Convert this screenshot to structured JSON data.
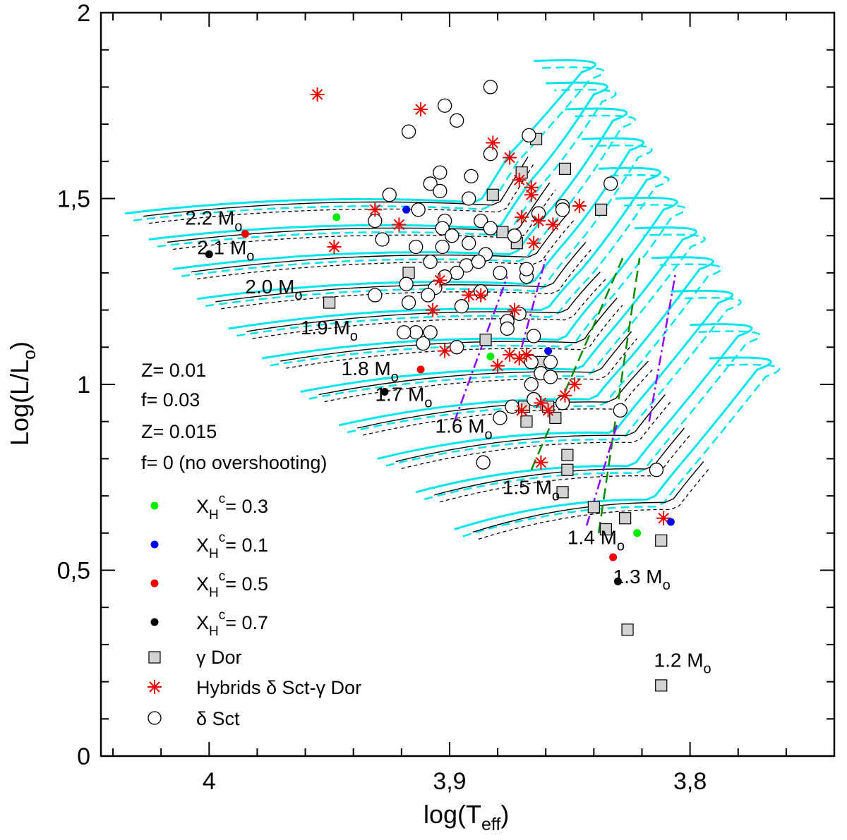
{
  "chart_data": {
    "type": "scatter",
    "title": "",
    "xlabel": "log(T",
    "xlabel_sub": "eff",
    "xlabel_close": ")",
    "ylabel": "Log(L/L",
    "ylabel_sub": "o",
    "ylabel_close": ")",
    "xlim": [
      4.045,
      3.74
    ],
    "ylim": [
      0,
      2
    ],
    "x_ticks": [
      {
        "v": 4.0,
        "label": "4"
      },
      {
        "v": 3.9,
        "label": "3,9"
      },
      {
        "v": 3.8,
        "label": "3,8"
      }
    ],
    "y_ticks": [
      {
        "v": 0,
        "label": "0"
      },
      {
        "v": 0.5,
        "label": "0,5"
      },
      {
        "v": 1,
        "label": "1"
      },
      {
        "v": 1.5,
        "label": "1,5"
      },
      {
        "v": 2,
        "label": "2"
      }
    ],
    "model_text": [
      {
        "text": "Z= 0.01",
        "color": "#00e5ee"
      },
      {
        "text": "f= 0.03",
        "color": "#00e5ee"
      },
      {
        "text": "Z= 0.015",
        "color": "#000000"
      },
      {
        "text": "f= 0 (no overshooting)",
        "color": "#000000"
      }
    ],
    "mass_labels": [
      {
        "mass": "2.2 M",
        "sub": "o",
        "x": 4.01,
        "y": 1.43
      },
      {
        "mass": "2.1 M",
        "sub": "o",
        "x": 4.005,
        "y": 1.35
      },
      {
        "mass": "2.0 M",
        "sub": "o",
        "x": 3.985,
        "y": 1.245
      },
      {
        "mass": "1.9 M",
        "sub": "o",
        "x": 3.962,
        "y": 1.135
      },
      {
        "mass": "1.8 M",
        "sub": "o",
        "x": 3.945,
        "y": 1.025
      },
      {
        "mass": "1.7 M",
        "sub": "o",
        "x": 3.931,
        "y": 0.955
      },
      {
        "mass": "1.6 M",
        "sub": "o",
        "x": 3.906,
        "y": 0.87
      },
      {
        "mass": "1.5 M",
        "sub": "o",
        "x": 3.878,
        "y": 0.705
      },
      {
        "mass": "1.4 M",
        "sub": "o",
        "x": 3.851,
        "y": 0.57
      },
      {
        "mass": "1.3 M",
        "sub": "o",
        "x": 3.832,
        "y": 0.465
      },
      {
        "mass": "1.2 M",
        "sub": "o",
        "x": 3.815,
        "y": 0.24
      }
    ],
    "tracks": [
      {
        "mass": 2.2,
        "zams": [
          4.035,
          1.46
        ],
        "x_h07": [
          4.0,
          1.35
        ],
        "x_h05": [
          3.985,
          1.405
        ],
        "x_h03": [
          3.947,
          1.45
        ],
        "x_h01": [
          3.918,
          1.47
        ],
        "tams_hot": [
          3.89,
          1.49
        ],
        "tams_cool": [
          3.875,
          1.62
        ],
        "end": [
          3.845,
          1.84
        ]
      },
      {
        "mass": 2.1,
        "zams": [
          4.025,
          1.39
        ],
        "tams_hot": [
          3.882,
          1.42
        ],
        "tams_cool": [
          3.866,
          1.55
        ],
        "end": [
          3.84,
          1.78
        ]
      },
      {
        "mass": 2.0,
        "zams": [
          4.015,
          1.31
        ],
        "tams_hot": [
          3.875,
          1.35
        ],
        "tams_cool": [
          3.858,
          1.47
        ],
        "end": [
          3.832,
          1.71
        ]
      },
      {
        "mass": 1.9,
        "zams": [
          4.005,
          1.23
        ],
        "tams_hot": [
          3.868,
          1.27
        ],
        "tams_cool": [
          3.851,
          1.39
        ],
        "end": [
          3.825,
          1.63
        ]
      },
      {
        "mass": 1.8,
        "zams": [
          3.992,
          1.15
        ],
        "tams_hot": [
          3.862,
          1.2
        ],
        "tams_cool": [
          3.845,
          1.31
        ],
        "end": [
          3.818,
          1.55
        ]
      },
      {
        "mass": 1.7,
        "zams": [
          3.978,
          1.07
        ],
        "x_h07": [
          3.927,
          0.98
        ],
        "x_h05": [
          3.912,
          1.04
        ],
        "x_h03": [
          3.883,
          1.075
        ],
        "x_h01": [
          3.859,
          1.09
        ],
        "tams_hot": [
          3.855,
          1.12
        ],
        "tams_cool": [
          3.838,
          1.24
        ],
        "end": [
          3.811,
          1.47
        ]
      },
      {
        "mass": 1.6,
        "zams": [
          3.962,
          0.98
        ],
        "tams_hot": [
          3.848,
          1.04
        ],
        "tams_cool": [
          3.832,
          1.15
        ],
        "end": [
          3.803,
          1.39
        ]
      },
      {
        "mass": 1.5,
        "zams": [
          3.946,
          0.89
        ],
        "tams_hot": [
          3.842,
          0.96
        ],
        "tams_cool": [
          3.825,
          1.07
        ],
        "end": [
          3.796,
          1.31
        ]
      },
      {
        "mass": 1.4,
        "zams": [
          3.93,
          0.8
        ],
        "tams_hot": [
          3.834,
          0.87
        ],
        "tams_cool": [
          3.818,
          0.98
        ],
        "end": [
          3.788,
          1.22
        ]
      },
      {
        "mass": 1.3,
        "zams": [
          3.914,
          0.71
        ],
        "tams_hot": [
          3.826,
          0.78
        ],
        "tams_cool": [
          3.81,
          0.89
        ],
        "end": [
          3.78,
          1.13
        ]
      },
      {
        "mass": 1.2,
        "zams": [
          3.898,
          0.61
        ],
        "x_h07": [
          3.83,
          0.47
        ],
        "x_h05": [
          3.832,
          0.535
        ],
        "x_h03": [
          3.822,
          0.6
        ],
        "x_h01": [
          3.808,
          0.63
        ],
        "tams_hot": [
          3.818,
          0.69
        ],
        "tams_cool": [
          3.802,
          0.8
        ],
        "end": [
          3.772,
          1.04
        ]
      }
    ],
    "instability_strip": {
      "green": [
        {
          "from": [
            3.866,
            0.77
          ],
          "to": [
            3.828,
            1.34
          ]
        },
        {
          "from": [
            3.838,
            0.6
          ],
          "to": [
            3.821,
            1.34
          ]
        }
      ],
      "purple": [
        {
          "from": [
            3.898,
            0.9
          ],
          "to": [
            3.876,
            1.29
          ]
        },
        {
          "from": [
            3.87,
            1.1
          ],
          "to": [
            3.86,
            1.34
          ]
        },
        {
          "from": [
            3.843,
            0.62
          ],
          "to": [
            3.83,
            0.9
          ]
        },
        {
          "from": [
            3.817,
            0.9
          ],
          "to": [
            3.806,
            1.3
          ]
        }
      ]
    },
    "stars_delta_sct": [
      [
        3.917,
        1.68
      ],
      [
        3.902,
        1.75
      ],
      [
        3.897,
        1.71
      ],
      [
        3.883,
        1.8
      ],
      [
        3.867,
        1.67
      ],
      [
        3.883,
        1.62
      ],
      [
        3.904,
        1.57
      ],
      [
        3.891,
        1.56
      ],
      [
        3.908,
        1.54
      ],
      [
        3.904,
        1.52
      ],
      [
        3.892,
        1.5
      ],
      [
        3.925,
        1.51
      ],
      [
        3.853,
        1.48
      ],
      [
        3.863,
        1.46
      ],
      [
        3.853,
        1.47
      ],
      [
        3.833,
        1.54
      ],
      [
        3.913,
        1.47
      ],
      [
        3.931,
        1.44
      ],
      [
        3.902,
        1.44
      ],
      [
        3.887,
        1.44
      ],
      [
        3.903,
        1.42
      ],
      [
        3.883,
        1.42
      ],
      [
        3.899,
        1.4
      ],
      [
        3.928,
        1.39
      ],
      [
        3.914,
        1.37
      ],
      [
        3.892,
        1.38
      ],
      [
        3.873,
        1.4
      ],
      [
        3.903,
        1.37
      ],
      [
        3.893,
        1.32
      ],
      [
        3.885,
        1.35
      ],
      [
        3.908,
        1.33
      ],
      [
        3.897,
        1.3
      ],
      [
        3.888,
        1.33
      ],
      [
        3.879,
        1.3
      ],
      [
        3.868,
        1.29
      ],
      [
        3.868,
        1.31
      ],
      [
        3.902,
        1.29
      ],
      [
        3.906,
        1.26
      ],
      [
        3.918,
        1.27
      ],
      [
        3.909,
        1.24
      ],
      [
        3.931,
        1.24
      ],
      [
        3.917,
        1.22
      ],
      [
        3.895,
        1.21
      ],
      [
        3.887,
        1.25
      ],
      [
        3.876,
        1.17
      ],
      [
        3.871,
        1.19
      ],
      [
        3.865,
        1.13
      ],
      [
        3.876,
        1.15
      ],
      [
        3.911,
        1.11
      ],
      [
        3.908,
        1.14
      ],
      [
        3.914,
        1.14
      ],
      [
        3.919,
        1.14
      ],
      [
        3.897,
        1.1
      ],
      [
        3.866,
        1.06
      ],
      [
        3.862,
        1.03
      ],
      [
        3.853,
        0.95
      ],
      [
        3.865,
        0.96
      ],
      [
        3.874,
        0.94
      ],
      [
        3.879,
        0.91
      ],
      [
        3.886,
        0.79
      ],
      [
        3.814,
        0.77
      ],
      [
        3.829,
        0.93
      ],
      [
        3.866,
        1.0
      ],
      [
        3.858,
        1.02
      ],
      [
        3.858,
        1.06
      ]
    ],
    "stars_gamma_dor": [
      [
        3.864,
        1.66
      ],
      [
        3.87,
        1.57
      ],
      [
        3.852,
        1.58
      ],
      [
        3.882,
        1.51
      ],
      [
        3.837,
        1.47
      ],
      [
        3.878,
        1.41
      ],
      [
        3.872,
        1.38
      ],
      [
        3.917,
        1.3
      ],
      [
        3.95,
        1.22
      ],
      [
        3.885,
        1.12
      ],
      [
        3.862,
        1.06
      ],
      [
        3.869,
        0.94
      ],
      [
        3.859,
        0.94
      ],
      [
        3.856,
        0.91
      ],
      [
        3.868,
        0.9
      ],
      [
        3.851,
        0.81
      ],
      [
        3.851,
        0.77
      ],
      [
        3.853,
        0.71
      ],
      [
        3.84,
        0.67
      ],
      [
        3.835,
        0.61
      ],
      [
        3.827,
        0.64
      ],
      [
        3.812,
        0.58
      ],
      [
        3.826,
        0.34
      ],
      [
        3.812,
        0.19
      ]
    ],
    "stars_hybrid": [
      [
        3.955,
        1.78
      ],
      [
        3.912,
        1.74
      ],
      [
        3.882,
        1.65
      ],
      [
        3.875,
        1.61
      ],
      [
        3.871,
        1.55
      ],
      [
        3.866,
        1.53
      ],
      [
        3.866,
        1.51
      ],
      [
        3.846,
        1.48
      ],
      [
        3.857,
        1.43
      ],
      [
        3.863,
        1.44
      ],
      [
        3.865,
        1.38
      ],
      [
        3.87,
        1.45
      ],
      [
        3.931,
        1.47
      ],
      [
        3.921,
        1.43
      ],
      [
        3.948,
        1.37
      ],
      [
        3.904,
        1.28
      ],
      [
        3.892,
        1.24
      ],
      [
        3.887,
        1.24
      ],
      [
        3.873,
        1.2
      ],
      [
        3.907,
        1.2
      ],
      [
        3.902,
        1.09
      ],
      [
        3.871,
        1.07
      ],
      [
        3.875,
        1.08
      ],
      [
        3.868,
        1.08
      ],
      [
        3.88,
        1.05
      ],
      [
        3.87,
        0.93
      ],
      [
        3.859,
        0.93
      ],
      [
        3.862,
        0.95
      ],
      [
        3.852,
        0.97
      ],
      [
        3.848,
        1.0
      ],
      [
        3.862,
        0.79
      ],
      [
        3.811,
        0.64
      ]
    ],
    "series": [
      {
        "name": "X_H^c= 0.3",
        "label_main": "X",
        "label_sub": "H",
        "label_sup": "c",
        "label_tail": "= 0.3",
        "marker": "dot",
        "color": "#00ee00"
      },
      {
        "name": "X_H^c= 0.1",
        "label_main": "X",
        "label_sub": "H",
        "label_sup": "c",
        "label_tail": "= 0.1",
        "marker": "dot",
        "color": "#0000ee"
      },
      {
        "name": "X_H^c= 0.5",
        "label_main": "X",
        "label_sub": "H",
        "label_sup": "c",
        "label_tail": "= 0.5",
        "marker": "dot",
        "color": "#ee0000"
      },
      {
        "name": "X_H^c= 0.7",
        "label_main": "X",
        "label_sub": "H",
        "label_sup": "c",
        "label_tail": "= 0.7",
        "marker": "dot",
        "color": "#000000"
      },
      {
        "name": "γ Dor",
        "label_main": "γ Dor",
        "marker": "square",
        "color": "#d3d3d3"
      },
      {
        "name": "Hybrids δ Sct-γ Dor",
        "label_main": "Hybrids δ Sct-γ Dor",
        "marker": "asterisk",
        "color": "#ee0000"
      },
      {
        "name": "δ Sct",
        "label_main": "δ Sct",
        "marker": "circle",
        "color": "#ffffff"
      }
    ],
    "colors": {
      "overshoot_track": "#00e5ee",
      "no_overshoot_track": "#000000",
      "strip_green": "#008b00",
      "strip_purple": "#8b00ff"
    }
  }
}
